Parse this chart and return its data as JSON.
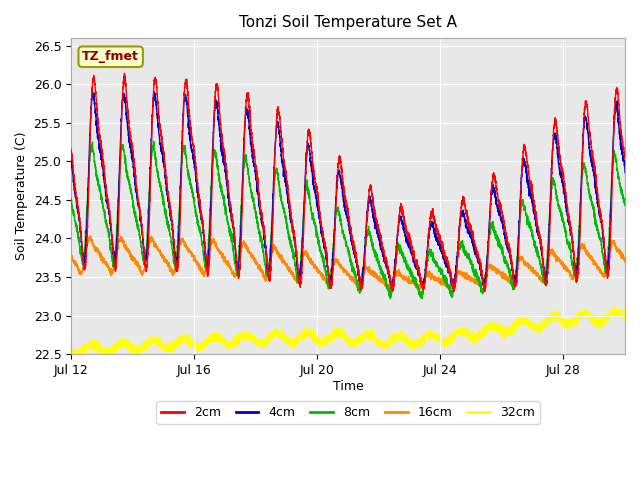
{
  "title": "Tonzi Soil Temperature Set A",
  "xlabel": "Time",
  "ylabel": "Soil Temperature (C)",
  "ylim": [
    22.5,
    26.6
  ],
  "x_ticks_days": [
    0,
    4,
    8,
    12,
    16
  ],
  "x_tick_labels": [
    "Jul 12",
    "Jul 16",
    "Jul 20",
    "Jul 24",
    "Jul 28"
  ],
  "y_ticks": [
    22.5,
    23.0,
    23.5,
    24.0,
    24.5,
    25.0,
    25.5,
    26.0,
    26.5
  ],
  "colors": {
    "2cm": "#ff0000",
    "4cm": "#0000cc",
    "8cm": "#00bb00",
    "16cm": "#ff8800",
    "32cm": "#ffff00"
  },
  "annotation_text": "TZ_fmet",
  "fig_bg": "#ffffff",
  "plot_bg": "#e8e8e8",
  "grid_color": "#ffffff",
  "n_points": 4320
}
